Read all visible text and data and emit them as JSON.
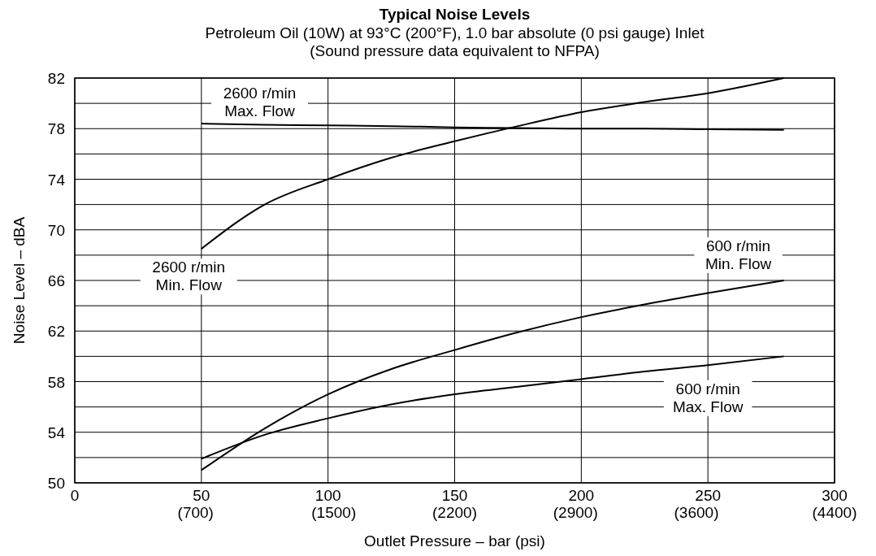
{
  "chart_data": {
    "type": "line",
    "title": "Typical Noise Levels",
    "subtitle": "Petroleum Oil (10W) at 93°C (200°F), 1.0 bar absolute (0 psi gauge) Inlet\n(Sound pressure data equivalent to NFPA)",
    "xlabel": "Outlet Pressure – bar (psi)",
    "ylabel": "Noise Level – dBA",
    "xlim": [
      0,
      300
    ],
    "ylim": [
      50,
      82
    ],
    "xticks": [
      0,
      50,
      100,
      150,
      200,
      250,
      300
    ],
    "x2lim": [
      0,
      4400
    ],
    "x2ticks": [
      {
        "value": 700,
        "label": "(700)"
      },
      {
        "value": 1500,
        "label": "(1500)"
      },
      {
        "value": 2200,
        "label": "(2200)"
      },
      {
        "value": 2900,
        "label": "(2900)"
      },
      {
        "value": 3600,
        "label": "(3600)"
      },
      {
        "value": 4400,
        "label": "(4400)"
      }
    ],
    "yticks": [
      50,
      {
        "value": 52,
        "label": null
      },
      54,
      {
        "value": 56,
        "label": null
      },
      58,
      {
        "value": 60,
        "label": null
      },
      62,
      {
        "value": 64,
        "label": null
      },
      66,
      {
        "value": 68,
        "label": null
      },
      70,
      {
        "value": 72,
        "label": null
      },
      74,
      {
        "value": 76,
        "label": null
      },
      78,
      {
        "value": 80,
        "label": null
      },
      82
    ],
    "grid": true,
    "line_style": "solid",
    "x": [
      50,
      75,
      100,
      125,
      150,
      175,
      200,
      225,
      250,
      280
    ],
    "series": [
      {
        "name": "2600 r/min\nMax. Flow",
        "color": "#000000",
        "values": [
          78.4,
          78.3,
          78.25,
          78.2,
          78.1,
          78.05,
          78.0,
          78.0,
          77.95,
          77.9
        ]
      },
      {
        "name": "2600 r/min\nMin. Flow",
        "color": "#000000",
        "values": [
          68.5,
          72.0,
          74.0,
          75.7,
          77.0,
          78.2,
          79.3,
          80.1,
          80.8,
          82.0
        ]
      },
      {
        "name": "600 r/min\nMin. Flow",
        "color": "#000000",
        "values": [
          51.0,
          54.3,
          57.0,
          59.0,
          60.5,
          61.9,
          63.1,
          64.1,
          65.0,
          66.0
        ]
      },
      {
        "name": "600 r/min\nMax. Flow",
        "color": "#000000",
        "values": [
          51.9,
          53.8,
          55.1,
          56.2,
          57.0,
          57.6,
          58.2,
          58.8,
          59.3,
          60.0
        ]
      }
    ]
  }
}
